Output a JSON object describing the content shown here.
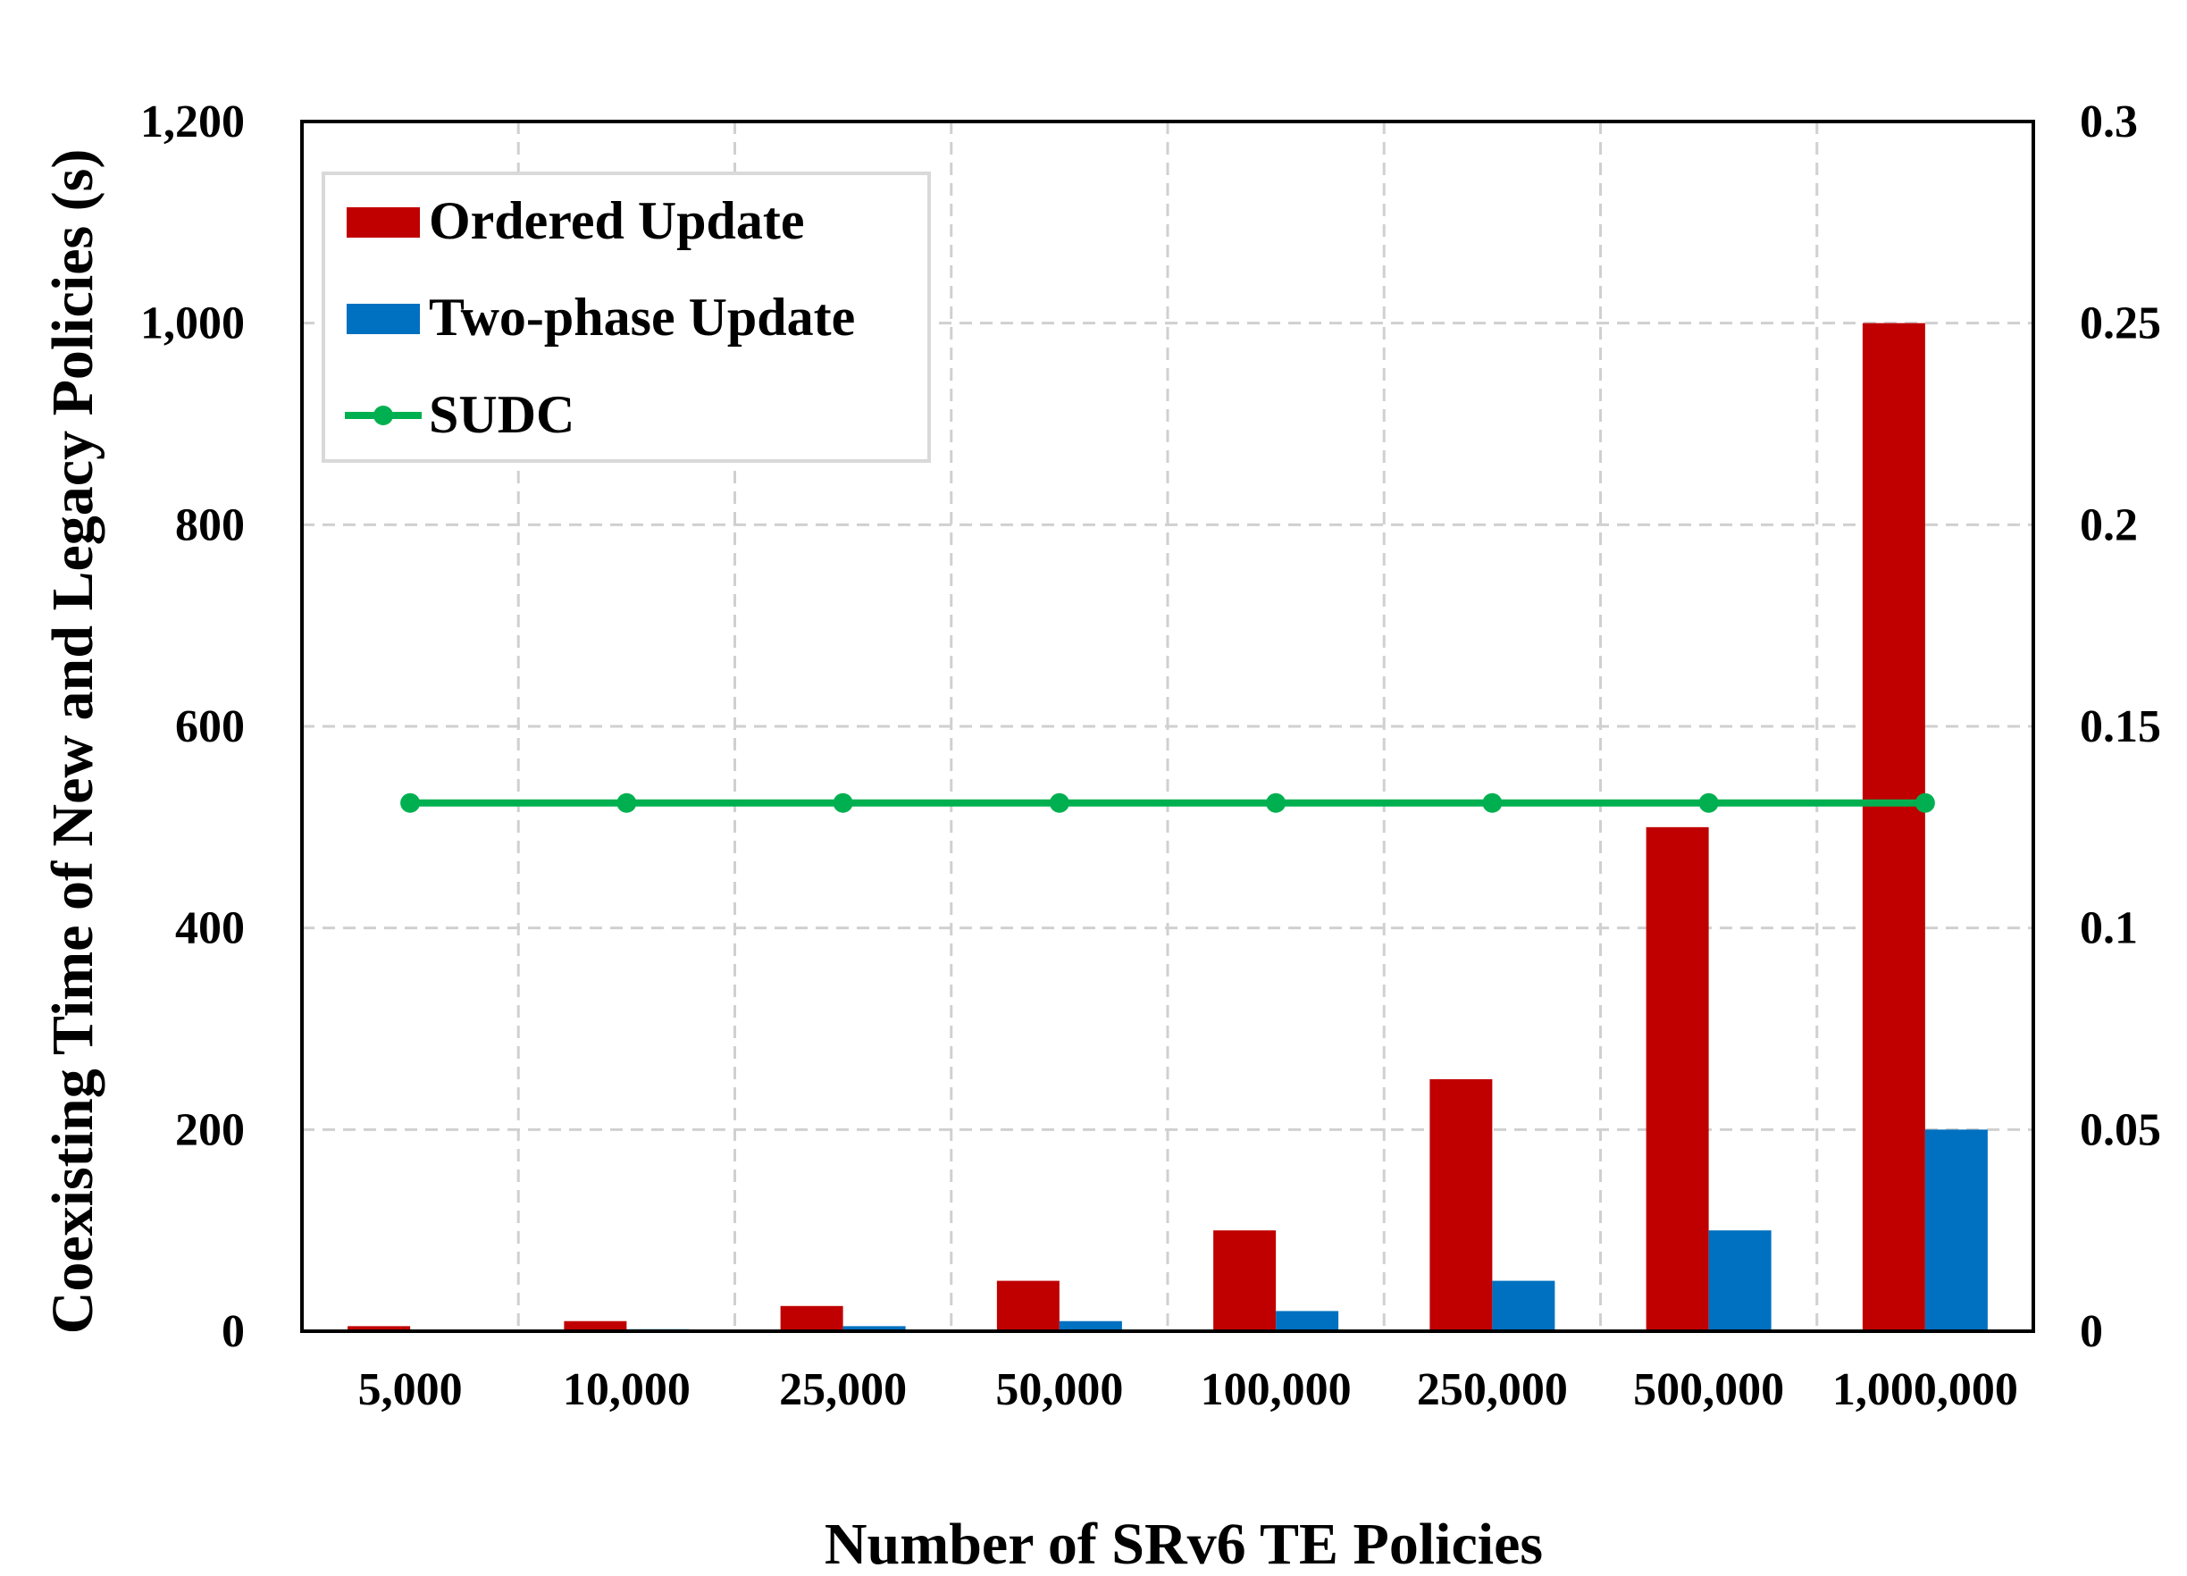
{
  "chart_data": {
    "type": "bar",
    "categories": [
      "5,000",
      "10,000",
      "25,000",
      "50,000",
      "100,000",
      "250,000",
      "500,000",
      "1,000,000"
    ],
    "series": [
      {
        "name": "Ordered Update",
        "type": "bar",
        "axis": "left",
        "color": "#C00000",
        "values": [
          5,
          10,
          25,
          50,
          100,
          250,
          500,
          1000
        ]
      },
      {
        "name": "Two-phase Update",
        "type": "bar",
        "axis": "left",
        "color": "#0070C0",
        "values": [
          1,
          2,
          5,
          10,
          20,
          50,
          100,
          200
        ]
      },
      {
        "name": "SUDC",
        "type": "line",
        "axis": "right",
        "color": "#00B050",
        "values": [
          0.131,
          0.131,
          0.131,
          0.131,
          0.131,
          0.131,
          0.131,
          0.131
        ]
      }
    ],
    "xlabel": "Number of SRv6 TE Policies",
    "ylabel": "Coexisting Time of New and Legacy Policies (s)",
    "ylim": [
      0,
      1200
    ],
    "y2lim": [
      0,
      0.3
    ],
    "yticks": [
      "0",
      "200",
      "400",
      "600",
      "800",
      "1,000",
      "1,200"
    ],
    "y2ticks": [
      "0",
      "0.05",
      "0.1",
      "0.15",
      "0.2",
      "0.25",
      "0.3"
    ],
    "grid": true,
    "legend_position": "top-left"
  }
}
